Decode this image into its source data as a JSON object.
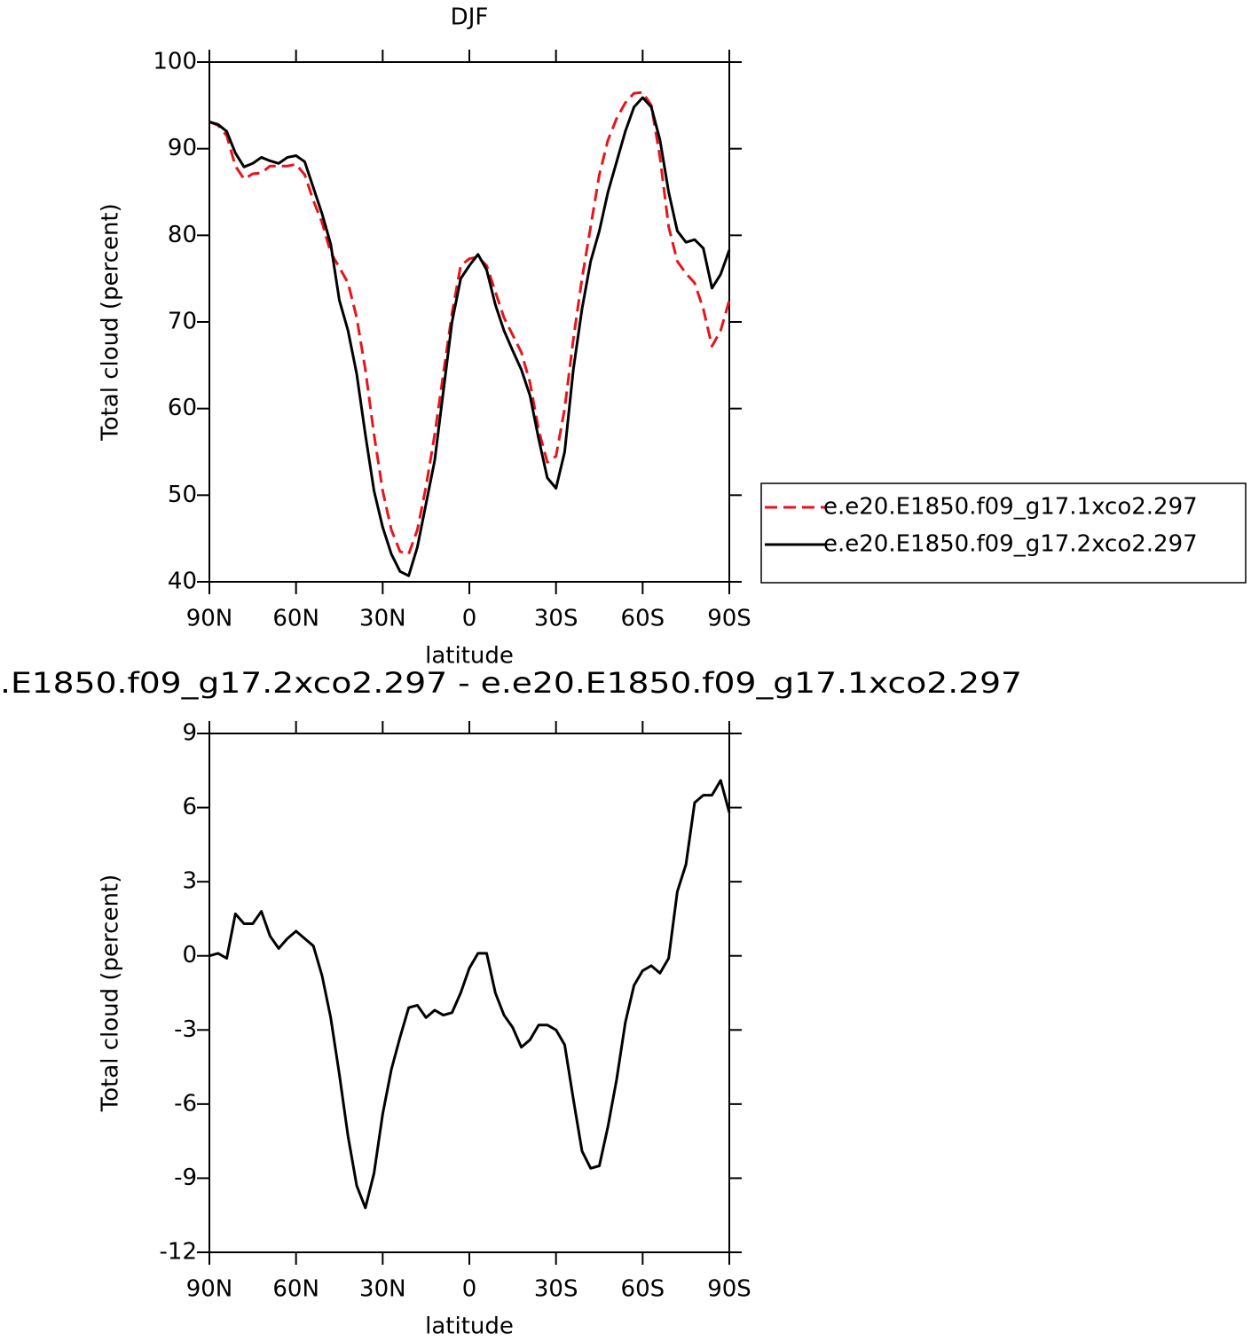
{
  "chart_data": [
    {
      "type": "line",
      "title": "DJF",
      "xlabel": "latitude",
      "ylabel": "Total cloud (percent)",
      "x": [
        90,
        87,
        84,
        81,
        78,
        75,
        72,
        69,
        66,
        63,
        60,
        57,
        54,
        51,
        48,
        45,
        42,
        39,
        36,
        33,
        30,
        27,
        24,
        21,
        18,
        15,
        12,
        9,
        6,
        3,
        0,
        -3,
        -6,
        -9,
        -12,
        -15,
        -18,
        -21,
        -24,
        -27,
        -30,
        -33,
        -36,
        -39,
        -42,
        -45,
        -48,
        -51,
        -54,
        -57,
        -60,
        -63,
        -66,
        -69,
        -72,
        -75,
        -78,
        -81,
        -84,
        -87,
        -90
      ],
      "xlim": [
        90,
        -90
      ],
      "xticks": [
        {
          "value": 90,
          "label": "90N"
        },
        {
          "value": 60,
          "label": "60N"
        },
        {
          "value": 30,
          "label": "30N"
        },
        0,
        {
          "value": -30,
          "label": "30S"
        },
        {
          "value": -60,
          "label": "60S"
        },
        {
          "value": -90,
          "label": "90S"
        }
      ],
      "ylim": [
        40,
        100
      ],
      "yticks": [
        40,
        50,
        60,
        70,
        80,
        90,
        100
      ],
      "legend": "right",
      "series": [
        {
          "name": "e.e20.E1850.f09_g17.1xco2.297",
          "color": "#e8141c",
          "linestyle": "dashed",
          "values": [
            93.1,
            92.7,
            91.5,
            88,
            86.5,
            87.1,
            87.2,
            88,
            88,
            88,
            88.2,
            87,
            84,
            81.5,
            78,
            76.3,
            74.5,
            70.5,
            64.5,
            57,
            50.5,
            46,
            43.5,
            43.2,
            46,
            51,
            57,
            64,
            71,
            76.5,
            77.3,
            77.5,
            76.5,
            73.5,
            70.5,
            68.5,
            66.5,
            63,
            57.5,
            53.8,
            54.5,
            60,
            68,
            75,
            81,
            87,
            91,
            93.5,
            95.3,
            96.4,
            96.5,
            95,
            89,
            81,
            77,
            75.6,
            74.5,
            71.5,
            67.2,
            69,
            72.5
          ]
        },
        {
          "name": "e.e20.E1850.f09_g17.2xco2.297",
          "color": "#000000",
          "linestyle": "solid",
          "values": [
            93.1,
            92.8,
            92.0,
            89.5,
            87.9,
            88.3,
            89.0,
            88.6,
            88.3,
            89.0,
            89.2,
            88.5,
            85.5,
            82.5,
            79,
            72.5,
            69,
            64,
            57,
            50.5,
            46.3,
            43.2,
            41.2,
            40.7,
            44,
            49,
            54,
            62,
            70,
            75,
            76.5,
            77.8,
            76,
            72,
            69,
            66.7,
            64.5,
            61.5,
            56.5,
            52,
            50.8,
            55,
            64.5,
            71.5,
            77,
            80.5,
            85,
            88.5,
            92,
            94.8,
            95.9,
            94.8,
            91,
            85,
            80.5,
            79.2,
            79.5,
            78.5,
            73.9,
            75.5,
            78.3
          ]
        }
      ]
    },
    {
      "type": "line",
      "title": ".E1850.f09_g17.2xco2.297 - e.e20.E1850.f09_g17.1xco2.297",
      "xlabel": "latitude",
      "ylabel": "Total cloud (percent)",
      "x": [
        90,
        87,
        84,
        81,
        78,
        75,
        72,
        69,
        66,
        63,
        60,
        57,
        54,
        51,
        48,
        45,
        42,
        39,
        36,
        33,
        30,
        27,
        24,
        21,
        18,
        15,
        12,
        9,
        6,
        3,
        0,
        -3,
        -6,
        -9,
        -12,
        -15,
        -18,
        -21,
        -24,
        -27,
        -30,
        -33,
        -36,
        -39,
        -42,
        -45,
        -48,
        -51,
        -54,
        -57,
        -60,
        -63,
        -66,
        -69,
        -72,
        -75,
        -78,
        -81,
        -84,
        -87,
        -90
      ],
      "xlim": [
        90,
        -90
      ],
      "xticks": [
        {
          "value": 90,
          "label": "90N"
        },
        {
          "value": 60,
          "label": "60N"
        },
        {
          "value": 30,
          "label": "30N"
        },
        0,
        {
          "value": -30,
          "label": "30S"
        },
        {
          "value": -60,
          "label": "60S"
        },
        {
          "value": -90,
          "label": "90S"
        }
      ],
      "ylim": [
        -12,
        9
      ],
      "yticks": [
        -12,
        -9,
        -6,
        -3,
        0,
        3,
        6,
        9
      ],
      "color": "#000000",
      "values": [
        0.0,
        0.1,
        -0.1,
        1.7,
        1.3,
        1.3,
        1.8,
        0.8,
        0.3,
        0.7,
        1.0,
        0.7,
        0.4,
        -0.8,
        -2.5,
        -4.8,
        -7.3,
        -9.3,
        -10.2,
        -8.8,
        -6.4,
        -4.6,
        -3.3,
        -2.1,
        -2.0,
        -2.5,
        -2.2,
        -2.4,
        -2.3,
        -1.5,
        -0.5,
        0.1,
        0.1,
        -1.5,
        -2.4,
        -2.9,
        -3.7,
        -3.4,
        -2.8,
        -2.8,
        -3.0,
        -3.6,
        -5.8,
        -7.9,
        -8.6,
        -8.5,
        -6.9,
        -5.0,
        -2.7,
        -1.2,
        -0.6,
        -0.4,
        -0.7,
        -0.1,
        2.6,
        3.7,
        6.2,
        6.5,
        6.5,
        7.1,
        5.8
      ]
    }
  ]
}
